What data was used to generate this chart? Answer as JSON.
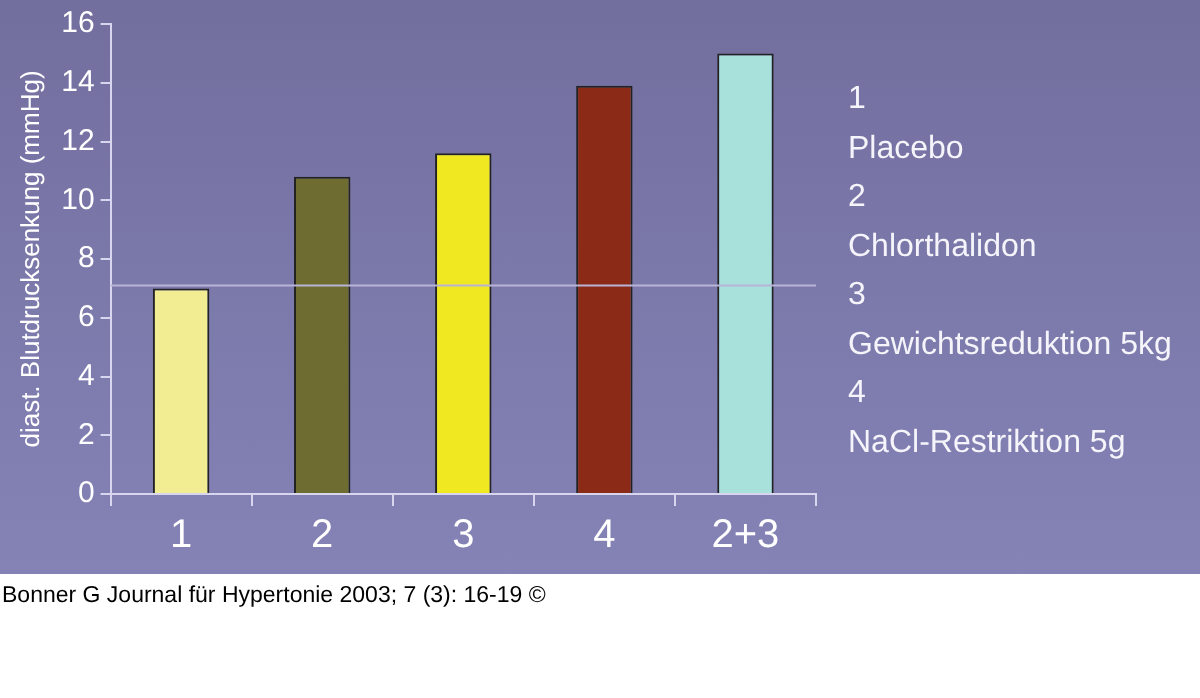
{
  "chart_data": {
    "type": "bar",
    "ylabel": "diast. Blutdrucksenkung (mmHg)",
    "categories": [
      "1",
      "2",
      "3",
      "4",
      "2+3"
    ],
    "values": [
      7.0,
      10.8,
      11.6,
      13.9,
      15.0
    ],
    "colors": [
      "#f2ec92",
      "#6e6c30",
      "#f0e820",
      "#8c2a18",
      "#a8e0dc"
    ],
    "ylim": [
      0,
      16
    ],
    "yticks": [
      0,
      2,
      4,
      6,
      8,
      10,
      12,
      14,
      16
    ],
    "ref_lines": [
      {
        "axis": "y",
        "value": 7.1,
        "color": "#b8b4d8"
      }
    ],
    "annotations": [
      "1",
      "Placebo",
      "2",
      "Chlorthalidon",
      "3",
      "Gewichtsreduktion 5kg",
      "4",
      "NaCl-Restriktion 5g",
      "Bonner G Journal für Hypertonie 2003; 7 (3): 16-19 ©"
    ]
  }
}
